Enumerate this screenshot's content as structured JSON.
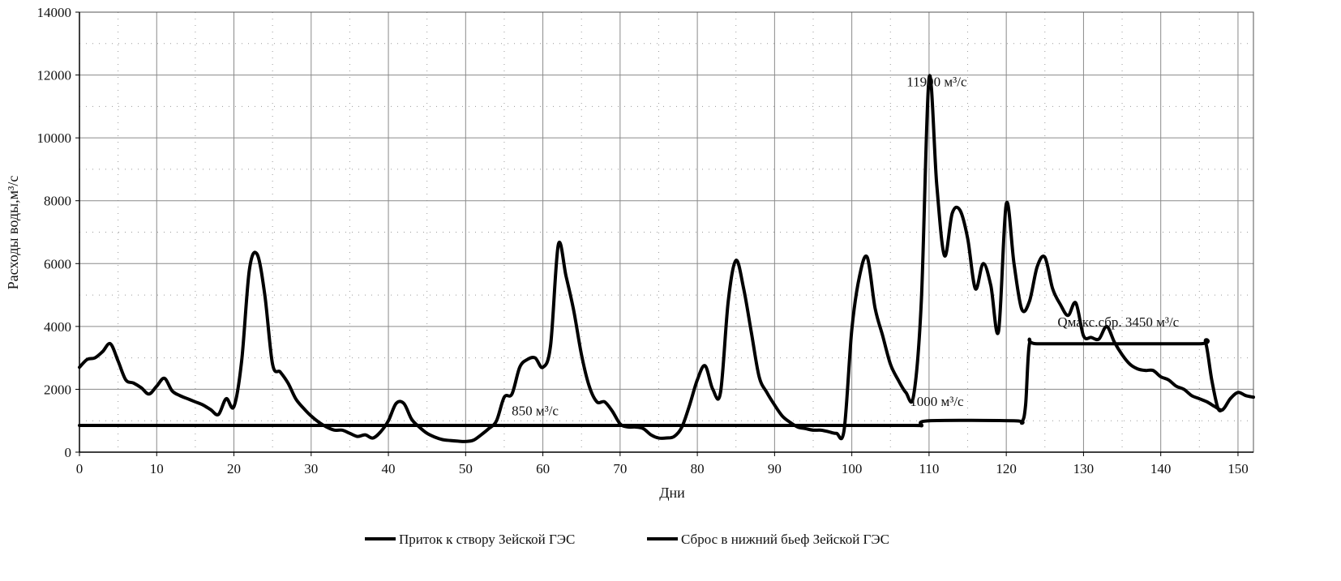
{
  "chart_data": {
    "type": "line",
    "xlabel": "Дни",
    "ylabel": "Расходы воды,м³/с",
    "xlim": [
      0,
      152
    ],
    "ylim": [
      0,
      14000
    ],
    "x_ticks": [
      "0",
      "10",
      "20",
      "30",
      "40",
      "50",
      "60",
      "70",
      "80",
      "90",
      "100",
      "110",
      "120",
      "130",
      "140",
      "150"
    ],
    "y_ticks": [
      "0",
      "2000",
      "4000",
      "6000",
      "8000",
      "10000",
      "12000",
      "14000"
    ],
    "grid": true,
    "legend_position": "bottom",
    "annotations": [
      {
        "text": "11900  м³/с",
        "x": 111,
        "y": 11800
      },
      {
        "text": "850  м³/с",
        "x": 59,
        "y": 1330
      },
      {
        "text": "1000  м³/с",
        "x": 111,
        "y": 1630
      },
      {
        "text": "Qмакс.сбр.  3450  м³/с",
        "x": 134.5,
        "y": 4150
      }
    ],
    "series": [
      {
        "name": "Приток к створу Зейской ГЭС",
        "color": "#000000",
        "points": [
          [
            0,
            2700
          ],
          [
            1,
            2950
          ],
          [
            2,
            3000
          ],
          [
            3,
            3200
          ],
          [
            4,
            3450
          ],
          [
            5,
            2900
          ],
          [
            6,
            2300
          ],
          [
            7,
            2200
          ],
          [
            8,
            2050
          ],
          [
            9,
            1850
          ],
          [
            10,
            2100
          ],
          [
            11,
            2350
          ],
          [
            12,
            1950
          ],
          [
            13,
            1800
          ],
          [
            14,
            1700
          ],
          [
            15,
            1600
          ],
          [
            16,
            1500
          ],
          [
            17,
            1350
          ],
          [
            18,
            1200
          ],
          [
            19,
            1700
          ],
          [
            20,
            1450
          ],
          [
            21,
            2900
          ],
          [
            22,
            5800
          ],
          [
            23,
            6300
          ],
          [
            24,
            5000
          ],
          [
            25,
            2800
          ],
          [
            26,
            2550
          ],
          [
            27,
            2200
          ],
          [
            28,
            1700
          ],
          [
            29,
            1400
          ],
          [
            30,
            1150
          ],
          [
            31,
            950
          ],
          [
            32,
            800
          ],
          [
            33,
            700
          ],
          [
            34,
            700
          ],
          [
            35,
            600
          ],
          [
            36,
            500
          ],
          [
            37,
            550
          ],
          [
            38,
            450
          ],
          [
            39,
            650
          ],
          [
            40,
            1000
          ],
          [
            41,
            1550
          ],
          [
            42,
            1550
          ],
          [
            43,
            1050
          ],
          [
            44,
            800
          ],
          [
            45,
            600
          ],
          [
            46,
            480
          ],
          [
            47,
            400
          ],
          [
            48,
            370
          ],
          [
            49,
            350
          ],
          [
            50,
            340
          ],
          [
            51,
            380
          ],
          [
            52,
            550
          ],
          [
            53,
            750
          ],
          [
            54,
            1000
          ],
          [
            55,
            1750
          ],
          [
            56,
            1850
          ],
          [
            57,
            2700
          ],
          [
            58,
            2950
          ],
          [
            59,
            3000
          ],
          [
            60,
            2700
          ],
          [
            61,
            3400
          ],
          [
            62,
            6600
          ],
          [
            63,
            5600
          ],
          [
            64,
            4500
          ],
          [
            65,
            3100
          ],
          [
            66,
            2100
          ],
          [
            67,
            1600
          ],
          [
            68,
            1600
          ],
          [
            69,
            1300
          ],
          [
            70,
            900
          ],
          [
            71,
            800
          ],
          [
            72,
            800
          ],
          [
            73,
            750
          ],
          [
            74,
            550
          ],
          [
            75,
            450
          ],
          [
            76,
            450
          ],
          [
            77,
            500
          ],
          [
            78,
            800
          ],
          [
            79,
            1500
          ],
          [
            80,
            2300
          ],
          [
            81,
            2750
          ],
          [
            82,
            2000
          ],
          [
            83,
            1900
          ],
          [
            84,
            4800
          ],
          [
            85,
            6100
          ],
          [
            86,
            5200
          ],
          [
            87,
            3800
          ],
          [
            88,
            2400
          ],
          [
            89,
            1900
          ],
          [
            90,
            1500
          ],
          [
            91,
            1150
          ],
          [
            92,
            950
          ],
          [
            93,
            800
          ],
          [
            94,
            750
          ],
          [
            95,
            700
          ],
          [
            96,
            700
          ],
          [
            97,
            650
          ],
          [
            98,
            600
          ],
          [
            99,
            700
          ],
          [
            100,
            3900
          ],
          [
            101,
            5600
          ],
          [
            102,
            6200
          ],
          [
            103,
            4600
          ],
          [
            104,
            3700
          ],
          [
            105,
            2800
          ],
          [
            106,
            2300
          ],
          [
            107,
            1900
          ],
          [
            108,
            1800
          ],
          [
            109,
            4800
          ],
          [
            110,
            11900
          ],
          [
            111,
            8500
          ],
          [
            112,
            6250
          ],
          [
            113,
            7600
          ],
          [
            114,
            7700
          ],
          [
            115,
            6800
          ],
          [
            116,
            5200
          ],
          [
            117,
            6000
          ],
          [
            118,
            5300
          ],
          [
            119,
            3850
          ],
          [
            120,
            7900
          ],
          [
            121,
            6000
          ],
          [
            122,
            4550
          ],
          [
            123,
            4800
          ],
          [
            124,
            5900
          ],
          [
            125,
            6200
          ],
          [
            126,
            5200
          ],
          [
            127,
            4700
          ],
          [
            128,
            4350
          ],
          [
            129,
            4750
          ],
          [
            130,
            3700
          ],
          [
            131,
            3650
          ],
          [
            132,
            3600
          ],
          [
            133,
            4000
          ],
          [
            134,
            3500
          ],
          [
            135,
            3100
          ],
          [
            136,
            2800
          ],
          [
            137,
            2650
          ],
          [
            138,
            2600
          ],
          [
            139,
            2600
          ],
          [
            140,
            2400
          ],
          [
            141,
            2300
          ],
          [
            142,
            2100
          ],
          [
            143,
            2000
          ],
          [
            144,
            1800
          ],
          [
            145,
            1700
          ],
          [
            146,
            1600
          ],
          [
            147,
            1450
          ],
          [
            148,
            1350
          ],
          [
            149,
            1700
          ],
          [
            150,
            1900
          ],
          [
            151,
            1800
          ],
          [
            152,
            1750
          ]
        ]
      },
      {
        "name": "Сброс в нижний бьеф Зейской ГЭС",
        "color": "#000000",
        "points": [
          [
            0,
            850
          ],
          [
            98,
            850
          ],
          [
            108,
            850
          ],
          [
            109,
            850
          ],
          [
            110,
            1000
          ],
          [
            121,
            1000
          ],
          [
            122,
            950
          ],
          [
            122.5,
            1500
          ],
          [
            123,
            3450
          ],
          [
            124,
            3450
          ],
          [
            133,
            3450
          ],
          [
            145,
            3450
          ],
          [
            145.8,
            3500
          ],
          [
            146.6,
            2300
          ],
          [
            147.4,
            1400
          ],
          [
            148,
            1350
          ]
        ]
      }
    ]
  }
}
